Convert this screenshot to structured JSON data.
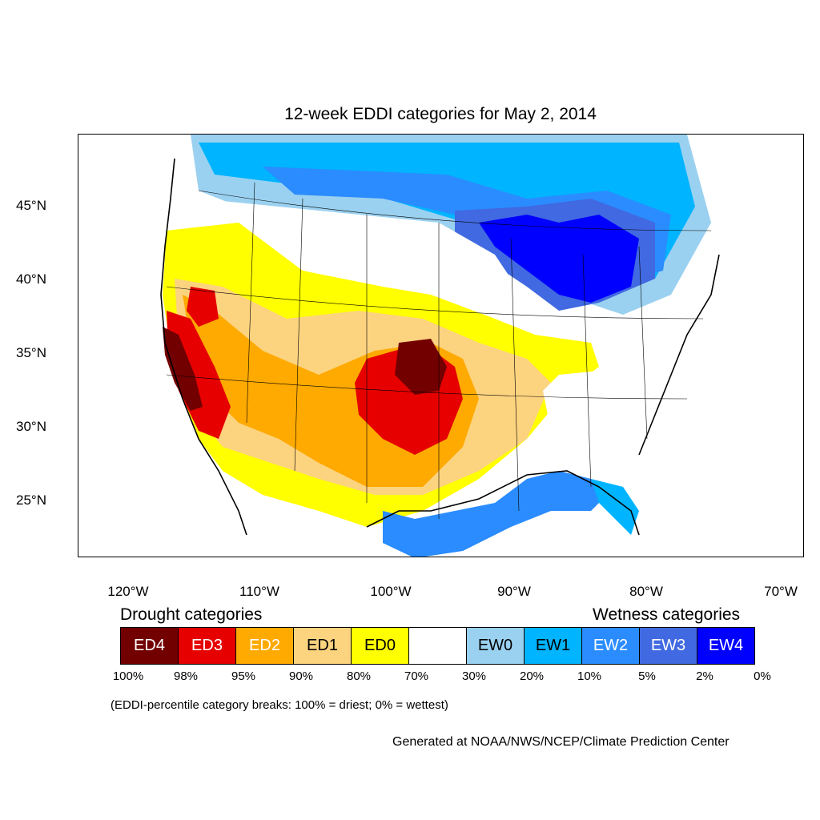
{
  "title": "12-week EDDI categories for May 2, 2014",
  "lat_labels": [
    "45°N",
    "40°N",
    "35°N",
    "30°N",
    "25°N"
  ],
  "lon_labels": [
    "120°W",
    "110°W",
    "100°W",
    "90°W",
    "80°W",
    "70°W"
  ],
  "legend": {
    "drought_heading": "Drought categories",
    "wetness_heading": "Wetness categories",
    "categories": [
      {
        "label": "ED4",
        "color": "#730000",
        "text_color": "#ffffff"
      },
      {
        "label": "ED3",
        "color": "#e60000",
        "text_color": "#ffffff"
      },
      {
        "label": "ED2",
        "color": "#ffaa00",
        "text_color": "#ffffff"
      },
      {
        "label": "ED1",
        "color": "#fcd37f",
        "text_color": "#000000"
      },
      {
        "label": "ED0",
        "color": "#ffff00",
        "text_color": "#000000"
      },
      {
        "label": "",
        "color": "#ffffff",
        "text_color": "#000000"
      },
      {
        "label": "EW0",
        "color": "#9bd1f0",
        "text_color": "#000000"
      },
      {
        "label": "EW1",
        "color": "#00b4ff",
        "text_color": "#000000"
      },
      {
        "label": "EW2",
        "color": "#2a8cff",
        "text_color": "#ffffff"
      },
      {
        "label": "EW3",
        "color": "#4169e1",
        "text_color": "#ffffff"
      },
      {
        "label": "EW4",
        "color": "#0000ff",
        "text_color": "#ffffff"
      }
    ],
    "breaks": [
      "100%",
      "98%",
      "95%",
      "90%",
      "80%",
      "70%",
      "30%",
      "20%",
      "10%",
      "5%",
      "2%",
      "0%"
    ]
  },
  "note": "(EDDI-percentile category breaks: 100% = driest; 0% = wettest)",
  "credit": "Generated at NOAA/NWS/NCEP/Climate Prediction Center"
}
